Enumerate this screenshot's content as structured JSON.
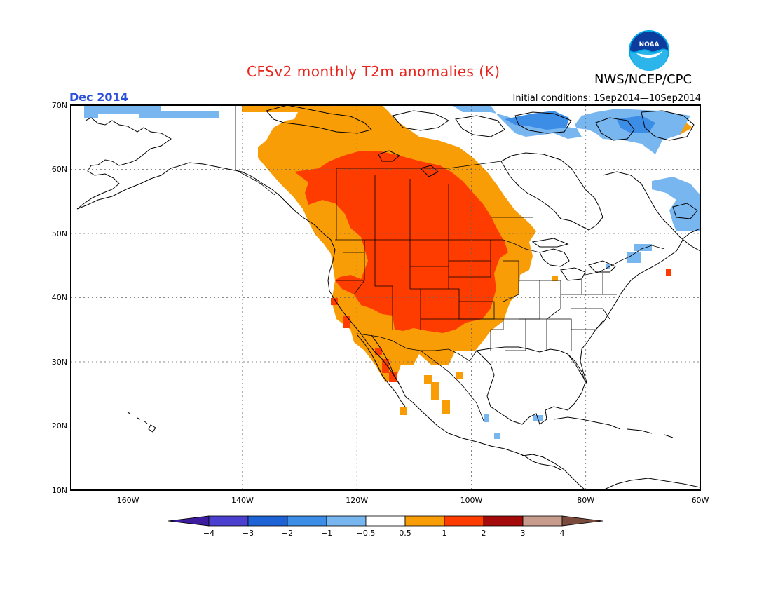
{
  "title": "CFSv2 monthly T2m anomalies (K)",
  "organization": "NWS/NCEP/CPC",
  "logo_text": "NOAA",
  "period": "Dec 2014",
  "initial_conditions": "Initial conditions: 1Sep2014—10Sep2014",
  "map": {
    "lon_range": [
      -170,
      -60
    ],
    "lat_range": [
      10,
      70
    ],
    "lat_ticks": [
      "70N",
      "60N",
      "50N",
      "40N",
      "30N",
      "20N",
      "10N"
    ],
    "lon_ticks": [
      "160W",
      "140W",
      "120W",
      "100W",
      "80W",
      "60W"
    ],
    "grid": "dotted"
  },
  "colorbar": {
    "labels": [
      "−4",
      "−3",
      "−2",
      "−1",
      "−0.5",
      "0.5",
      "1",
      "2",
      "3",
      "4"
    ],
    "colors": [
      "#3d1c9e",
      "#4a3fcf",
      "#1e63d6",
      "#3b8de6",
      "#78b6f0",
      "#ffffff",
      "#f99d07",
      "#ff3c00",
      "#a50a0a",
      "#c79c8c",
      "#7a4b3c"
    ]
  }
}
